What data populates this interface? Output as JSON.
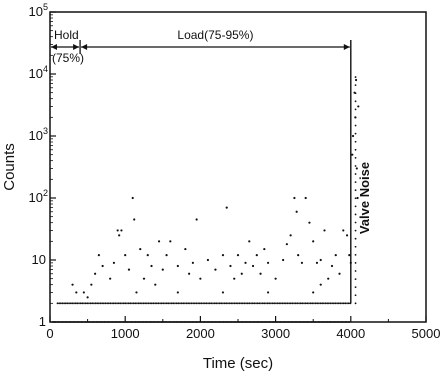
{
  "chart_data": {
    "type": "scatter",
    "title": "",
    "xlabel": "Time (sec)",
    "ylabel": "Counts",
    "xlim": [
      0,
      5000
    ],
    "ylim": [
      1,
      100000
    ],
    "yscale": "log",
    "grid": false,
    "x_ticks": [
      0,
      1000,
      2000,
      3000,
      4000,
      5000
    ],
    "x_tick_labels": [
      "0",
      "1000",
      "2000",
      "3000",
      "4000",
      "5000"
    ],
    "y_ticks": [
      1,
      10,
      100,
      1000,
      10000,
      100000
    ],
    "y_tick_labels": [
      {
        "base": "1",
        "exp": ""
      },
      {
        "base": "10",
        "exp": ""
      },
      {
        "base": "10",
        "exp": "2"
      },
      {
        "base": "10",
        "exp": "3"
      },
      {
        "base": "10",
        "exp": "4"
      },
      {
        "base": "10",
        "exp": "5"
      }
    ],
    "color": "#111111",
    "phases": [
      {
        "label": "Hold",
        "sublabel": "(75%)",
        "x_start": 0,
        "x_end": 400
      },
      {
        "label": "Load(75-95%)",
        "sublabel": "",
        "x_start": 400,
        "x_end": 4000
      }
    ],
    "annotations": [
      {
        "text": "Valve Noise",
        "x": 4000,
        "y_from": 2,
        "y_to": 10000
      }
    ],
    "series": [
      {
        "points": [
          [
            1100,
            100
          ],
          [
            600,
            6
          ],
          [
            650,
            12
          ],
          [
            700,
            8
          ],
          [
            800,
            5
          ],
          [
            850,
            9
          ],
          [
            900,
            30
          ],
          [
            920,
            25
          ],
          [
            950,
            30
          ],
          [
            1000,
            12
          ],
          [
            1050,
            7
          ],
          [
            1120,
            45
          ],
          [
            1200,
            15
          ],
          [
            1250,
            5
          ],
          [
            1300,
            12
          ],
          [
            1350,
            8
          ],
          [
            1400,
            4
          ],
          [
            1450,
            20
          ],
          [
            1500,
            7
          ],
          [
            1550,
            12
          ],
          [
            1600,
            20
          ],
          [
            1700,
            8
          ],
          [
            1800,
            15
          ],
          [
            1850,
            6
          ],
          [
            1900,
            9
          ],
          [
            1950,
            45
          ],
          [
            2000,
            5
          ],
          [
            2100,
            10
          ],
          [
            2200,
            7
          ],
          [
            2300,
            12
          ],
          [
            2350,
            70
          ],
          [
            2400,
            8
          ],
          [
            2450,
            5
          ],
          [
            2500,
            12
          ],
          [
            2550,
            6
          ],
          [
            2600,
            9
          ],
          [
            2650,
            20
          ],
          [
            2700,
            8
          ],
          [
            2750,
            12
          ],
          [
            2800,
            6
          ],
          [
            2850,
            15
          ],
          [
            2900,
            9
          ],
          [
            3000,
            5
          ],
          [
            3100,
            10
          ],
          [
            3150,
            18
          ],
          [
            3200,
            25
          ],
          [
            3250,
            100
          ],
          [
            3280,
            60
          ],
          [
            3300,
            12
          ],
          [
            3350,
            9
          ],
          [
            3400,
            100
          ],
          [
            3450,
            40
          ],
          [
            3500,
            20
          ],
          [
            3550,
            9
          ],
          [
            3600,
            10
          ],
          [
            3650,
            30
          ],
          [
            3700,
            5
          ],
          [
            3750,
            8
          ],
          [
            3800,
            12
          ],
          [
            3850,
            6
          ],
          [
            3900,
            30
          ],
          [
            3950,
            25
          ],
          [
            3980,
            12
          ],
          [
            4000,
            9
          ],
          [
            4020,
            500
          ],
          [
            4030,
            1000
          ],
          [
            4050,
            5000
          ],
          [
            4060,
            2000
          ],
          [
            4070,
            8000
          ],
          [
            4080,
            300
          ],
          [
            4090,
            100
          ],
          [
            4100,
            3000
          ],
          [
            300,
            4
          ],
          [
            350,
            3
          ],
          [
            450,
            3
          ],
          [
            500,
            2.5
          ],
          [
            550,
            4
          ],
          [
            1150,
            3
          ],
          [
            1700,
            3
          ],
          [
            2300,
            3
          ],
          [
            2900,
            3
          ],
          [
            3500,
            3
          ],
          [
            3600,
            4
          ]
        ]
      }
    ]
  }
}
